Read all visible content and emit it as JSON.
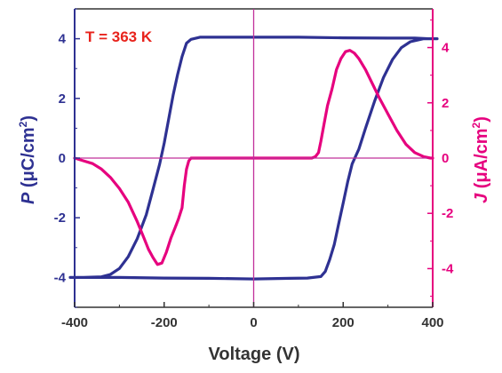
{
  "chart_data": {
    "type": "line",
    "annotation": "T = 363 K",
    "xlabel": "Voltage (V)",
    "ylabel_left": {
      "symbol": "P",
      "unit": " (μC/cm",
      "sup": "2",
      "close": ")"
    },
    "ylabel_right": {
      "symbol": "J",
      "unit": " (μA/cm",
      "sup": "2",
      "close": ")"
    },
    "xlim": [
      -400,
      400
    ],
    "ylim_left": [
      -5,
      5
    ],
    "ylim_right": [
      -5.4,
      5.4
    ],
    "x_ticks": [
      -400,
      -200,
      0,
      200,
      400
    ],
    "x_tick_labels": [
      "-400",
      "-200",
      "0",
      "200",
      "400"
    ],
    "y_left_ticks": [
      -4,
      -2,
      0,
      2,
      4
    ],
    "y_left_tick_labels": [
      "-4",
      "-2",
      "0",
      "2",
      "4"
    ],
    "y_right_ticks": [
      -4,
      -2,
      0,
      2,
      4
    ],
    "y_right_tick_labels": [
      "-4",
      "-2",
      "0",
      "2",
      "4"
    ],
    "colors": {
      "polarization": "#2e3192",
      "current": "#e6007e",
      "annotation": "#e8231c",
      "axis": "#333333"
    },
    "series": [
      {
        "axis": "left",
        "color": "#2e3192",
        "x": [
          -410,
          -380,
          -340,
          -320,
          -300,
          -280,
          -260,
          -240,
          -225,
          -210,
          -200,
          -190,
          -180,
          -170,
          -160,
          -150,
          -140,
          -120,
          -80,
          0,
          100,
          200,
          300,
          360,
          390,
          400,
          410,
          380,
          350,
          330,
          310,
          290,
          270,
          250,
          235,
          220,
          210,
          200,
          190,
          180,
          170,
          160,
          150,
          120,
          80,
          0,
          -100,
          -200,
          -300,
          -360,
          -400,
          -410
        ],
        "y": [
          -4.0,
          -4.0,
          -3.98,
          -3.9,
          -3.7,
          -3.3,
          -2.7,
          -1.9,
          -1.05,
          -0.2,
          0.5,
          1.3,
          2.1,
          2.8,
          3.4,
          3.85,
          3.98,
          4.05,
          4.05,
          4.05,
          4.05,
          4.03,
          4.02,
          4.02,
          4.0,
          4.0,
          4.0,
          4.0,
          3.9,
          3.7,
          3.3,
          2.7,
          1.9,
          1.0,
          0.3,
          -0.2,
          -0.8,
          -1.5,
          -2.2,
          -2.9,
          -3.4,
          -3.8,
          -3.97,
          -4.02,
          -4.03,
          -4.05,
          -4.03,
          -4.02,
          -4.0,
          -4.0,
          -4.0,
          -4.0
        ]
      },
      {
        "axis": "right",
        "color": "#e6007e",
        "x": [
          -400,
          -380,
          -360,
          -340,
          -320,
          -300,
          -280,
          -260,
          -245,
          -235,
          -225,
          -215,
          -205,
          -195,
          -185,
          -175,
          -168,
          -160,
          -155,
          -150,
          -145,
          -140,
          -130,
          -100,
          0,
          100,
          130,
          138,
          145,
          150,
          158,
          165,
          175,
          185,
          195,
          205,
          215,
          225,
          235,
          250,
          265,
          280,
          300,
          320,
          340,
          360,
          380,
          395,
          400
        ],
        "y": [
          0.0,
          -0.1,
          -0.2,
          -0.4,
          -0.7,
          -1.1,
          -1.6,
          -2.3,
          -2.9,
          -3.3,
          -3.6,
          -3.85,
          -3.8,
          -3.4,
          -2.9,
          -2.5,
          -2.2,
          -1.8,
          -1.0,
          -0.4,
          -0.1,
          0.0,
          0.0,
          0.0,
          0.0,
          0.0,
          0.0,
          0.05,
          0.2,
          0.6,
          1.3,
          1.9,
          2.5,
          3.2,
          3.6,
          3.85,
          3.9,
          3.8,
          3.6,
          3.2,
          2.7,
          2.2,
          1.6,
          1.0,
          0.5,
          0.2,
          0.05,
          0.0,
          0.0
        ]
      }
    ]
  }
}
